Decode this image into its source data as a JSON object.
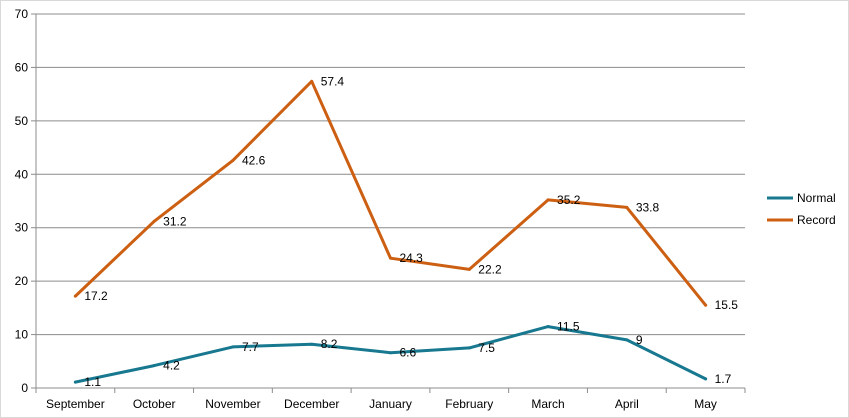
{
  "chart_data": {
    "type": "line",
    "title": "",
    "xlabel": "",
    "ylabel": "",
    "categories": [
      "September",
      "October",
      "November",
      "December",
      "January",
      "February",
      "March",
      "April",
      "May"
    ],
    "ylim": [
      0,
      70
    ],
    "yticks": [
      0,
      10,
      20,
      30,
      40,
      50,
      60,
      70
    ],
    "grid": true,
    "legend_position": "right",
    "series": [
      {
        "name": "Normal",
        "color": "#17788f",
        "values": [
          1.1,
          4.2,
          7.7,
          8.2,
          6.6,
          7.5,
          11.5,
          9,
          1.7
        ],
        "labels": [
          "1.1",
          "4.2",
          "7.7",
          "8.2",
          "6.6",
          "7.5",
          "11.5",
          "9",
          "1.7"
        ]
      },
      {
        "name": "Record",
        "color": "#cc5f12",
        "values": [
          17.2,
          31.2,
          42.6,
          57.4,
          24.3,
          22.2,
          35.2,
          33.8,
          15.5
        ],
        "labels": [
          "17.2",
          "31.2",
          "42.6",
          "57.4",
          "24.3",
          "22.2",
          "35.2",
          "33.8",
          "15.5"
        ]
      }
    ]
  }
}
